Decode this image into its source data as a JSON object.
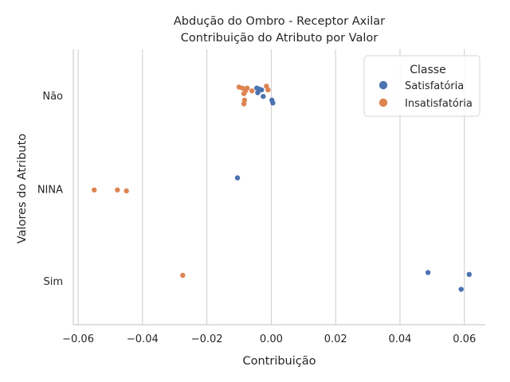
{
  "chart_data": {
    "type": "scatter",
    "title_line1": "Abdução do Ombro - Receptor Axilar",
    "title_line2": "Contribuição do Atributo por Valor",
    "xlabel": "Contribuição",
    "ylabel": "Valores do Atributo",
    "xlim": [
      -0.0615,
      0.0665
    ],
    "xticks": [
      -0.06,
      -0.04,
      -0.02,
      0.0,
      0.02,
      0.04,
      0.06
    ],
    "xtick_labels": [
      "−0.06",
      "−0.04",
      "−0.02",
      "0.00",
      "0.02",
      "0.04",
      "0.06"
    ],
    "categories": [
      "Não",
      "NINA",
      "Sim"
    ],
    "grid": "vertical",
    "legend": {
      "title": "Classe",
      "placement": "top-right"
    },
    "series": [
      {
        "name": "Satisfatória",
        "color": "#4c72b0",
        "points": [
          {
            "x": -0.0045,
            "cat": "Não",
            "jitter": -0.08
          },
          {
            "x": -0.0038,
            "cat": "Não",
            "jitter": -0.07
          },
          {
            "x": -0.003,
            "cat": "Não",
            "jitter": -0.06
          },
          {
            "x": -0.0042,
            "cat": "Não",
            "jitter": -0.03
          },
          {
            "x": -0.0025,
            "cat": "Não",
            "jitter": 0.01
          },
          {
            "x": 0.0002,
            "cat": "Não",
            "jitter": 0.05
          },
          {
            "x": 0.0005,
            "cat": "Não",
            "jitter": 0.08
          },
          {
            "x": -0.0105,
            "cat": "NINA",
            "jitter": -0.12
          },
          {
            "x": 0.0487,
            "cat": "Sim",
            "jitter": -0.09
          },
          {
            "x": 0.0615,
            "cat": "Sim",
            "jitter": -0.07
          },
          {
            "x": 0.059,
            "cat": "Sim",
            "jitter": 0.09
          }
        ]
      },
      {
        "name": "Insatisfatória",
        "color": "#dd8452",
        "points": [
          {
            "x": -0.01,
            "cat": "Não",
            "jitter": -0.09
          },
          {
            "x": -0.009,
            "cat": "Não",
            "jitter": -0.08
          },
          {
            "x": -0.006,
            "cat": "Não",
            "jitter": -0.05
          },
          {
            "x": -0.0075,
            "cat": "Não",
            "jitter": -0.08
          },
          {
            "x": -0.008,
            "cat": "Não",
            "jitter": -0.05
          },
          {
            "x": -0.0085,
            "cat": "Não",
            "jitter": -0.02
          },
          {
            "x": -0.0015,
            "cat": "Não",
            "jitter": -0.1
          },
          {
            "x": -0.001,
            "cat": "Não",
            "jitter": -0.06
          },
          {
            "x": -0.0083,
            "cat": "Não",
            "jitter": 0.05
          },
          {
            "x": -0.0085,
            "cat": "Não",
            "jitter": 0.09
          },
          {
            "x": -0.055,
            "cat": "NINA",
            "jitter": 0.01
          },
          {
            "x": -0.0478,
            "cat": "NINA",
            "jitter": 0.01
          },
          {
            "x": -0.045,
            "cat": "NINA",
            "jitter": 0.02
          },
          {
            "x": -0.0275,
            "cat": "Sim",
            "jitter": -0.06
          }
        ]
      }
    ]
  }
}
